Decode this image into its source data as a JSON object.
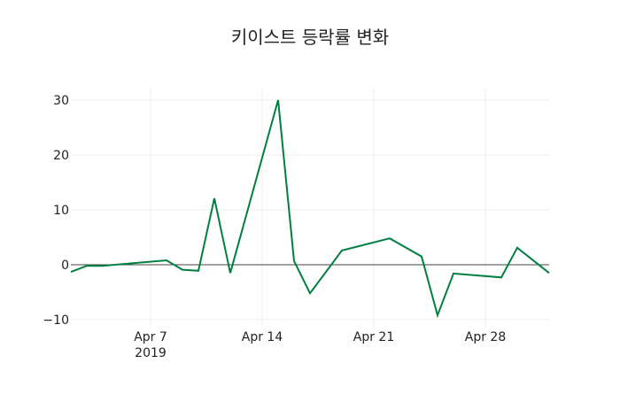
{
  "chart_data": {
    "type": "line",
    "title": "키이스트 등락률 변화",
    "xlabel": "",
    "ylabel": "",
    "x": [
      "2019-04-02",
      "2019-04-03",
      "2019-04-04",
      "2019-04-08",
      "2019-04-09",
      "2019-04-10",
      "2019-04-11",
      "2019-04-12",
      "2019-04-15",
      "2019-04-16",
      "2019-04-17",
      "2019-04-19",
      "2019-04-22",
      "2019-04-24",
      "2019-04-25",
      "2019-04-26",
      "2019-04-29",
      "2019-04-30",
      "2019-05-02"
    ],
    "series": [
      {
        "name": "등락률",
        "color": "#008040",
        "values": [
          -1.3,
          -0.2,
          -0.2,
          0.8,
          -0.9,
          -1.1,
          12.1,
          -1.5,
          30.0,
          0.7,
          -5.2,
          2.6,
          4.8,
          1.5,
          -9.2,
          -1.6,
          -2.3,
          3.1,
          -1.5
        ]
      }
    ],
    "ylim": [
      -12,
      32
    ],
    "yticks": [
      -10,
      0,
      10,
      20,
      30
    ],
    "ytick_labels": [
      "−10",
      "0",
      "10",
      "20",
      "30"
    ],
    "xticks": [
      "Apr 7",
      "Apr 14",
      "Apr 21",
      "Apr 28"
    ],
    "xtick_sublabel": "2019",
    "grid": true,
    "zero_line": true,
    "legend": null
  }
}
